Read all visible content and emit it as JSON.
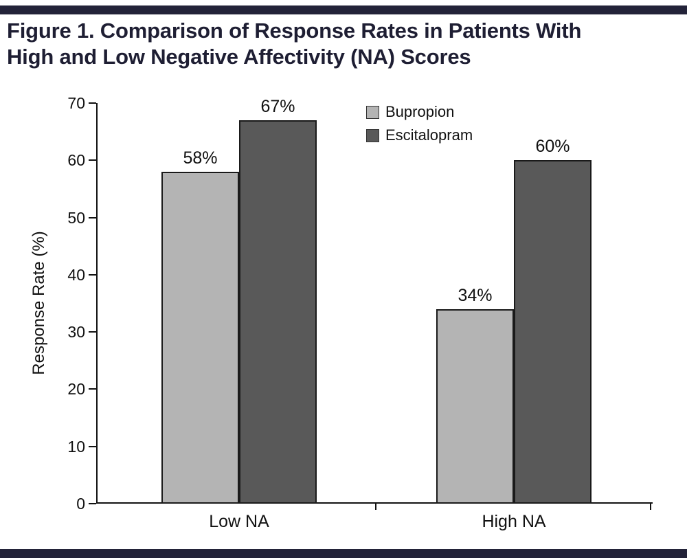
{
  "header": {
    "title_lines": [
      "Figure 1. Comparison of Response Rates in Patients With",
      "High and Low Negative Affectivity (NA) Scores"
    ]
  },
  "chart_data": {
    "type": "bar",
    "title": "Figure 1. Comparison of Response Rates in Patients With High and Low Negative Affectivity (NA) Scores",
    "categories": [
      "Low NA",
      "High NA"
    ],
    "series": [
      {
        "name": "Bupropion",
        "values": [
          58,
          34
        ],
        "labels": [
          "58%",
          "34%"
        ],
        "color": "#b4b4b4"
      },
      {
        "name": "Escitalopram",
        "values": [
          67,
          60
        ],
        "labels": [
          "67%",
          "60%"
        ],
        "color": "#595959"
      }
    ],
    "ylabel": "Response Rate (%)",
    "xlabel": "",
    "ylim": [
      0,
      70
    ],
    "yticks": [
      0,
      10,
      20,
      30,
      40,
      50,
      60,
      70
    ],
    "grid": false,
    "legend_position": "top-center-inside",
    "value_label_format": "percent"
  },
  "colors": {
    "rule_bar": "#232339",
    "title_text": "#1e1e33",
    "axis": "#111111",
    "bar_outline": "#1a1a1a"
  }
}
